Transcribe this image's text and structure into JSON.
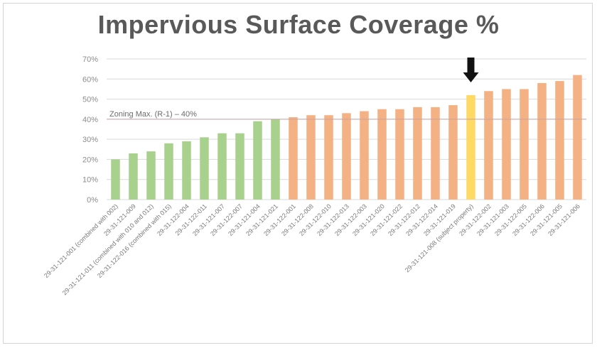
{
  "chart_data": {
    "type": "bar",
    "title": "Impervious Surface Coverage %",
    "categories": [
      "29-31-121-001 (combined with 002)",
      "29-31-121-009",
      "29-31-121-011 (combined with 010 and 012)",
      "29-31-122-016 (combined with 015)",
      "29-31-122-004",
      "29-31-122-011",
      "29-31-121-007",
      "29-31-122-007",
      "29-31-121-004",
      "29-31-121-021",
      "29-31-122-001",
      "29-31-122-008",
      "29-31-122-010",
      "29-31-122-013",
      "29-31-122-003",
      "29-31-121-020",
      "29-31-121-022",
      "29-31-122-012",
      "29-31-122-014",
      "29-31-121-019",
      "29-31-121-008 (subject property)",
      "29-31-122-002",
      "29-31-121-003",
      "29-31-122-005",
      "29-31-122-006",
      "29-31-121-005",
      "29-31-121-006"
    ],
    "values": [
      20,
      23,
      24,
      28,
      29,
      31,
      33,
      33,
      39,
      40,
      41,
      42,
      42,
      43,
      44,
      45,
      45,
      46,
      46,
      47,
      52,
      54,
      55,
      55,
      58,
      59,
      62
    ],
    "bar_colors": [
      "#a9d18e",
      "#a9d18e",
      "#a9d18e",
      "#a9d18e",
      "#a9d18e",
      "#a9d18e",
      "#a9d18e",
      "#a9d18e",
      "#a9d18e",
      "#a9d18e",
      "#f4b183",
      "#f4b183",
      "#f4b183",
      "#f4b183",
      "#f4b183",
      "#f4b183",
      "#f4b183",
      "#f4b183",
      "#f4b183",
      "#f4b183",
      "#ffd966",
      "#f4b183",
      "#f4b183",
      "#f4b183",
      "#f4b183",
      "#f4b183",
      "#f4b183"
    ],
    "ylim": [
      0,
      70
    ],
    "yticks": [
      "0%",
      "10%",
      "20%",
      "30%",
      "40%",
      "50%",
      "60%",
      "70%"
    ],
    "grid": true,
    "reference_line": {
      "value": 40,
      "label": "Zoning Max. (R-1) – 40%",
      "color": "#c9a3a3"
    },
    "highlight_index": 20,
    "colors": {
      "below_max": "#a9d18e",
      "above_max": "#f4b183",
      "subject": "#ffd966",
      "gridline": "#d9d9d9"
    }
  }
}
